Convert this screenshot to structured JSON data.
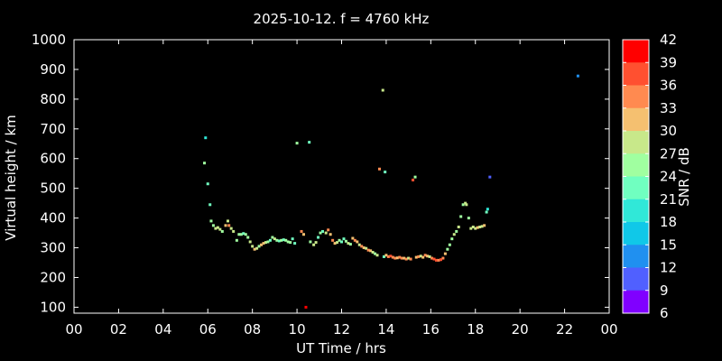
{
  "chart_data": {
    "type": "scatter",
    "title": "2025-10-12. f = 4760 kHz",
    "xlabel": "UT Time / hrs",
    "ylabel": "Virtual height / km",
    "xlim": [
      0,
      24
    ],
    "ylim": [
      80,
      1000
    ],
    "xticks": [
      "00",
      "02",
      "04",
      "06",
      "08",
      "10",
      "12",
      "14",
      "16",
      "18",
      "20",
      "22",
      "00"
    ],
    "yticks": [
      100,
      200,
      300,
      400,
      500,
      600,
      700,
      800,
      900,
      1000
    ],
    "colorbar": {
      "label": "SNR / dB",
      "range": [
        6,
        42
      ],
      "ticks": [
        42,
        39,
        36,
        33,
        30,
        27,
        24,
        21,
        18,
        15,
        12,
        9,
        6
      ],
      "colors": [
        "#ff0000",
        "#ff5030",
        "#ff8a50",
        "#f5c070",
        "#c8e88a",
        "#a0ffa0",
        "#70ffc0",
        "#30e8d8",
        "#10c8e8",
        "#2090f0",
        "#5060ff",
        "#8000ff"
      ]
    },
    "points": [
      [
        5.9,
        670,
        21
      ],
      [
        5.85,
        585,
        26
      ],
      [
        6.0,
        515,
        24
      ],
      [
        6.1,
        445,
        22
      ],
      [
        6.15,
        390,
        26
      ],
      [
        6.25,
        375,
        27
      ],
      [
        6.35,
        365,
        28
      ],
      [
        6.45,
        368,
        30
      ],
      [
        6.55,
        362,
        29
      ],
      [
        6.65,
        355,
        27
      ],
      [
        6.8,
        375,
        32
      ],
      [
        6.9,
        390,
        30
      ],
      [
        6.95,
        375,
        35
      ],
      [
        7.05,
        365,
        30
      ],
      [
        7.15,
        355,
        28
      ],
      [
        7.3,
        325,
        27
      ],
      [
        7.4,
        345,
        26
      ],
      [
        7.5,
        345,
        26
      ],
      [
        7.6,
        348,
        24
      ],
      [
        7.7,
        345,
        27
      ],
      [
        7.8,
        335,
        26
      ],
      [
        7.9,
        320,
        30
      ],
      [
        8.0,
        305,
        30
      ],
      [
        8.1,
        295,
        32
      ],
      [
        8.2,
        298,
        30
      ],
      [
        8.3,
        305,
        27
      ],
      [
        8.4,
        310,
        32
      ],
      [
        8.5,
        315,
        33
      ],
      [
        8.6,
        318,
        30
      ],
      [
        8.7,
        320,
        27
      ],
      [
        8.8,
        325,
        24
      ],
      [
        8.9,
        335,
        27
      ],
      [
        9.0,
        330,
        28
      ],
      [
        9.1,
        325,
        27
      ],
      [
        9.2,
        323,
        22
      ],
      [
        9.3,
        325,
        26
      ],
      [
        9.4,
        327,
        24
      ],
      [
        9.5,
        325,
        27
      ],
      [
        9.6,
        320,
        25
      ],
      [
        9.7,
        318,
        27
      ],
      [
        9.8,
        330,
        24
      ],
      [
        9.9,
        315,
        22
      ],
      [
        10.0,
        652,
        26
      ],
      [
        10.2,
        355,
        36
      ],
      [
        10.3,
        345,
        33
      ],
      [
        10.4,
        100,
        40
      ],
      [
        10.55,
        655,
        24
      ],
      [
        10.6,
        320,
        27
      ],
      [
        10.75,
        310,
        30
      ],
      [
        10.85,
        318,
        30
      ],
      [
        10.95,
        335,
        22
      ],
      [
        11.05,
        350,
        27
      ],
      [
        11.15,
        355,
        24
      ],
      [
        11.3,
        350,
        28
      ],
      [
        11.4,
        360,
        35
      ],
      [
        11.5,
        345,
        33
      ],
      [
        11.6,
        325,
        36
      ],
      [
        11.7,
        315,
        33
      ],
      [
        11.8,
        318,
        30
      ],
      [
        11.9,
        325,
        27
      ],
      [
        12.0,
        320,
        24
      ],
      [
        12.1,
        330,
        22
      ],
      [
        12.2,
        322,
        27
      ],
      [
        12.3,
        315,
        30
      ],
      [
        12.4,
        312,
        27
      ],
      [
        12.5,
        332,
        33
      ],
      [
        12.6,
        325,
        36
      ],
      [
        12.7,
        320,
        33
      ],
      [
        12.8,
        310,
        30
      ],
      [
        12.9,
        305,
        36
      ],
      [
        13.0,
        300,
        33
      ],
      [
        13.1,
        298,
        30
      ],
      [
        13.2,
        292,
        36
      ],
      [
        13.3,
        290,
        33
      ],
      [
        13.4,
        285,
        30
      ],
      [
        13.5,
        280,
        27
      ],
      [
        13.6,
        275,
        30
      ],
      [
        13.7,
        565,
        36
      ],
      [
        13.85,
        830,
        30
      ],
      [
        13.9,
        270,
        24
      ],
      [
        13.95,
        555,
        22
      ],
      [
        14.0,
        275,
        33
      ],
      [
        14.1,
        270,
        36
      ],
      [
        14.2,
        272,
        39
      ],
      [
        14.3,
        268,
        36
      ],
      [
        14.4,
        265,
        36
      ],
      [
        14.5,
        266,
        33
      ],
      [
        14.6,
        268,
        36
      ],
      [
        14.7,
        265,
        36
      ],
      [
        14.8,
        265,
        33
      ],
      [
        14.9,
        262,
        36
      ],
      [
        15.0,
        265,
        30
      ],
      [
        15.1,
        262,
        36
      ],
      [
        15.2,
        528,
        39
      ],
      [
        15.3,
        538,
        26
      ],
      [
        15.35,
        268,
        33
      ],
      [
        15.45,
        270,
        36
      ],
      [
        15.55,
        272,
        30
      ],
      [
        15.65,
        268,
        33
      ],
      [
        15.75,
        275,
        36
      ],
      [
        15.85,
        272,
        33
      ],
      [
        15.95,
        270,
        30
      ],
      [
        16.05,
        265,
        36
      ],
      [
        16.15,
        262,
        39
      ],
      [
        16.25,
        258,
        39
      ],
      [
        16.35,
        258,
        36
      ],
      [
        16.45,
        260,
        39
      ],
      [
        16.55,
        265,
        36
      ],
      [
        16.65,
        280,
        33
      ],
      [
        16.75,
        295,
        27
      ],
      [
        16.85,
        310,
        26
      ],
      [
        16.95,
        330,
        27
      ],
      [
        17.05,
        345,
        28
      ],
      [
        17.15,
        355,
        27
      ],
      [
        17.25,
        370,
        30
      ],
      [
        17.35,
        405,
        27
      ],
      [
        17.45,
        445,
        26
      ],
      [
        17.55,
        450,
        28
      ],
      [
        17.6,
        445,
        30
      ],
      [
        17.7,
        400,
        27
      ],
      [
        17.8,
        365,
        30
      ],
      [
        17.9,
        370,
        30
      ],
      [
        18.0,
        365,
        30
      ],
      [
        18.1,
        368,
        32
      ],
      [
        18.2,
        370,
        30
      ],
      [
        18.3,
        372,
        30
      ],
      [
        18.4,
        375,
        32
      ],
      [
        18.5,
        420,
        22
      ],
      [
        18.55,
        430,
        21
      ],
      [
        18.65,
        538,
        12
      ],
      [
        22.6,
        878,
        13
      ]
    ]
  }
}
